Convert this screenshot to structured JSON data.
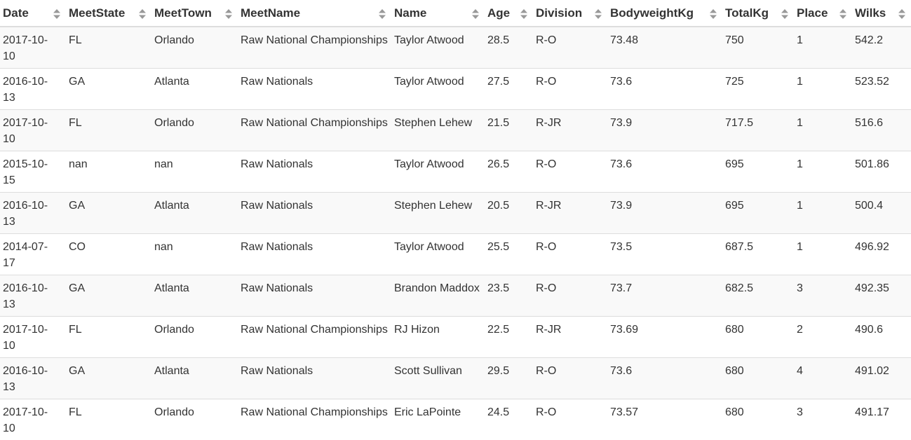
{
  "table": {
    "columns": [
      {
        "key": "date",
        "label": "Date"
      },
      {
        "key": "meet_state",
        "label": "MeetState"
      },
      {
        "key": "meet_town",
        "label": "MeetTown"
      },
      {
        "key": "meet_name",
        "label": "MeetName"
      },
      {
        "key": "name",
        "label": "Name"
      },
      {
        "key": "age",
        "label": "Age"
      },
      {
        "key": "division",
        "label": "Division"
      },
      {
        "key": "bodyweight",
        "label": "BodyweightKg"
      },
      {
        "key": "total",
        "label": "TotalKg"
      },
      {
        "key": "place",
        "label": "Place"
      },
      {
        "key": "wilks",
        "label": "Wilks"
      }
    ],
    "rows": [
      [
        "2017-10-10",
        "FL",
        "Orlando",
        "Raw National Championships",
        "Taylor Atwood",
        "28.5",
        "R-O",
        "73.48",
        "750",
        "1",
        "542.2"
      ],
      [
        "2016-10-13",
        "GA",
        "Atlanta",
        "Raw Nationals",
        "Taylor Atwood",
        "27.5",
        "R-O",
        "73.6",
        "725",
        "1",
        "523.52"
      ],
      [
        "2017-10-10",
        "FL",
        "Orlando",
        "Raw National Championships",
        "Stephen Lehew",
        "21.5",
        "R-JR",
        "73.9",
        "717.5",
        "1",
        "516.6"
      ],
      [
        "2015-10-15",
        "nan",
        "nan",
        "Raw Nationals",
        "Taylor Atwood",
        "26.5",
        "R-O",
        "73.6",
        "695",
        "1",
        "501.86"
      ],
      [
        "2016-10-13",
        "GA",
        "Atlanta",
        "Raw Nationals",
        "Stephen Lehew",
        "20.5",
        "R-JR",
        "73.9",
        "695",
        "1",
        "500.4"
      ],
      [
        "2014-07-17",
        "CO",
        "nan",
        "Raw Nationals",
        "Taylor Atwood",
        "25.5",
        "R-O",
        "73.5",
        "687.5",
        "1",
        "496.92"
      ],
      [
        "2016-10-13",
        "GA",
        "Atlanta",
        "Raw Nationals",
        "Brandon Maddox",
        "23.5",
        "R-O",
        "73.7",
        "682.5",
        "3",
        "492.35"
      ],
      [
        "2017-10-10",
        "FL",
        "Orlando",
        "Raw National Championships",
        "RJ Hizon",
        "22.5",
        "R-JR",
        "73.69",
        "680",
        "2",
        "490.6"
      ],
      [
        "2016-10-13",
        "GA",
        "Atlanta",
        "Raw Nationals",
        "Scott Sullivan",
        "29.5",
        "R-O",
        "73.6",
        "680",
        "4",
        "491.02"
      ],
      [
        "2017-10-10",
        "FL",
        "Orlando",
        "Raw National Championships",
        "Eric LaPointe",
        "24.5",
        "R-O",
        "73.57",
        "680",
        "3",
        "491.17"
      ]
    ]
  },
  "icons": {
    "sort": "sort-both-icon"
  },
  "colors": {
    "text": "#333333",
    "stripe": "#f9f9f9",
    "border": "#dddddd",
    "sort_icon": "#999999"
  }
}
